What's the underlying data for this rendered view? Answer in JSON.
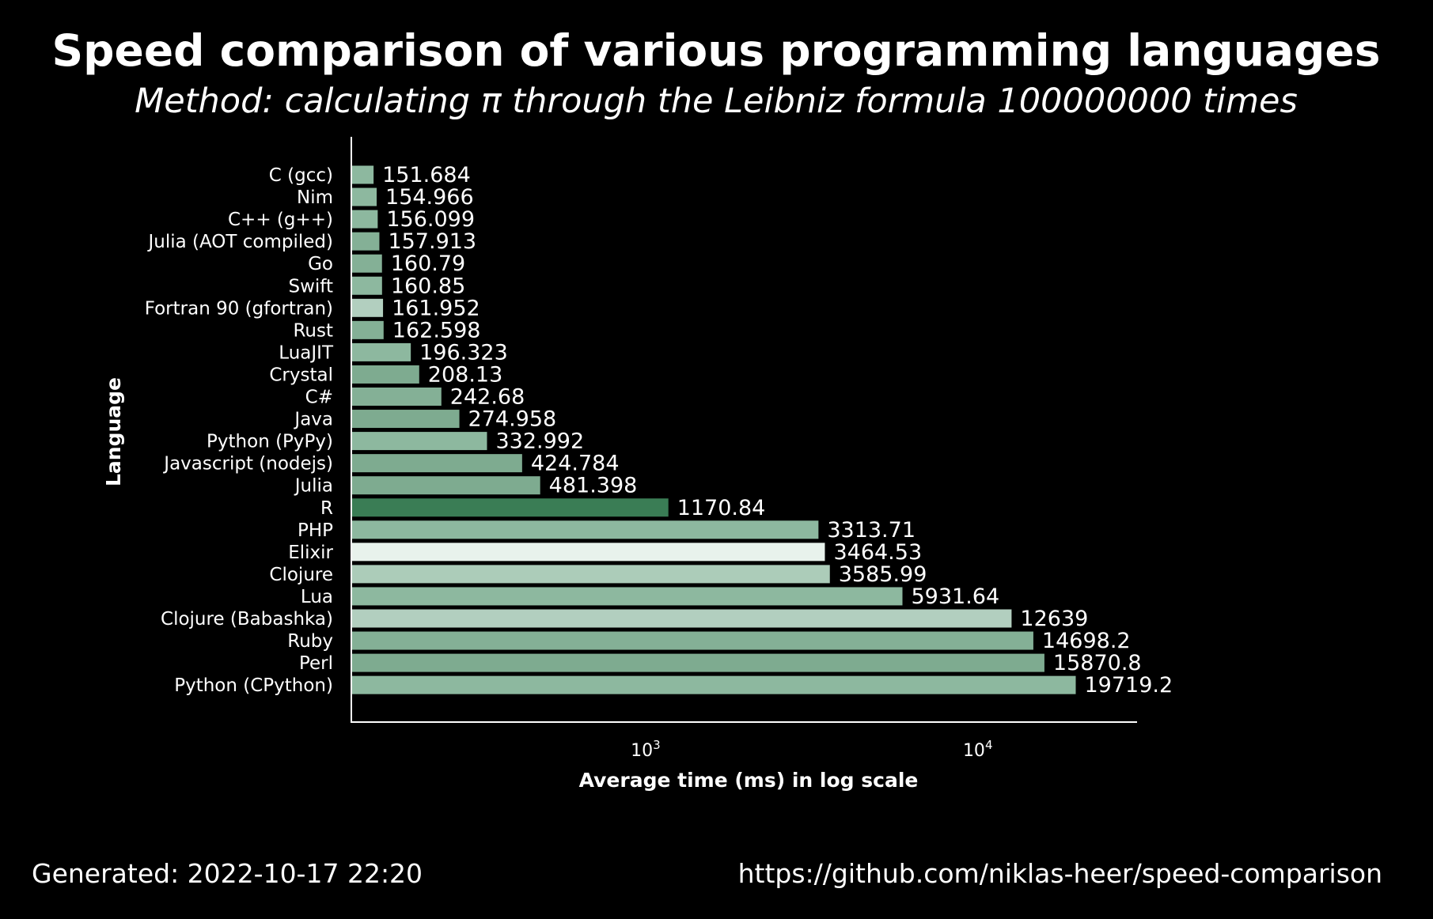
{
  "chart_data": {
    "type": "bar",
    "orientation": "horizontal",
    "title": "Speed comparison of various programming languages",
    "subtitle": "Method: calculating π through the Leibniz formula 100000000 times",
    "xlabel": "Average time (ms) in log scale",
    "ylabel": "Language",
    "x_scale": "log",
    "xlim": [
      130,
      30000
    ],
    "xticks": [
      {
        "value": 1000,
        "base": "10",
        "exp": "3"
      },
      {
        "value": 10000,
        "base": "10",
        "exp": "4"
      }
    ],
    "grid": false,
    "legend": "none",
    "categories": [
      "C (gcc)",
      "Nim",
      "C++ (g++)",
      "Julia (AOT compiled)",
      "Go",
      "Swift",
      "Fortran 90 (gfortran)",
      "Rust",
      "LuaJIT",
      "Crystal",
      "C#",
      "Java",
      "Python (PyPy)",
      "Javascript (nodejs)",
      "Julia",
      "R",
      "PHP",
      "Elixir",
      "Clojure",
      "Lua",
      "Clojure (Babashka)",
      "Ruby",
      "Perl",
      "Python (CPython)"
    ],
    "values": [
      151.684,
      154.966,
      156.099,
      157.913,
      160.79,
      160.85,
      161.952,
      162.598,
      196.323,
      208.13,
      242.68,
      274.958,
      332.992,
      424.784,
      481.398,
      1170.84,
      3313.71,
      3464.53,
      3585.99,
      5931.64,
      12639,
      14698.2,
      15870.8,
      19719.2
    ],
    "value_labels": [
      "151.684",
      "154.966",
      "156.099",
      "157.913",
      "160.79",
      "160.85",
      "161.952",
      "162.598",
      "196.323",
      "208.13",
      "242.68",
      "274.958",
      "332.992",
      "424.784",
      "481.398",
      "1170.84",
      "3313.71",
      "3464.53",
      "3585.99",
      "5931.64",
      "12639",
      "14698.2",
      "15870.8",
      "19719.2"
    ],
    "bar_colors": [
      "#8db89f",
      "#8db89f",
      "#8db89f",
      "#84b096",
      "#84b096",
      "#8db89f",
      "#b2cfbf",
      "#84b096",
      "#8db89f",
      "#7eab90",
      "#84b096",
      "#7eab90",
      "#8db89f",
      "#7eab90",
      "#7eab90",
      "#3a7d55",
      "#8db89f",
      "#e8f2ec",
      "#acccb9",
      "#8db89f",
      "#b2cfbf",
      "#84b096",
      "#7eab90",
      "#8db89f"
    ]
  },
  "footer": {
    "generated": "Generated: 2022-10-17 22:20",
    "url": "https://github.com/niklas-heer/speed-comparison"
  },
  "colors": {
    "background": "#000000",
    "text": "#ffffff",
    "axis": "#ffffff"
  }
}
